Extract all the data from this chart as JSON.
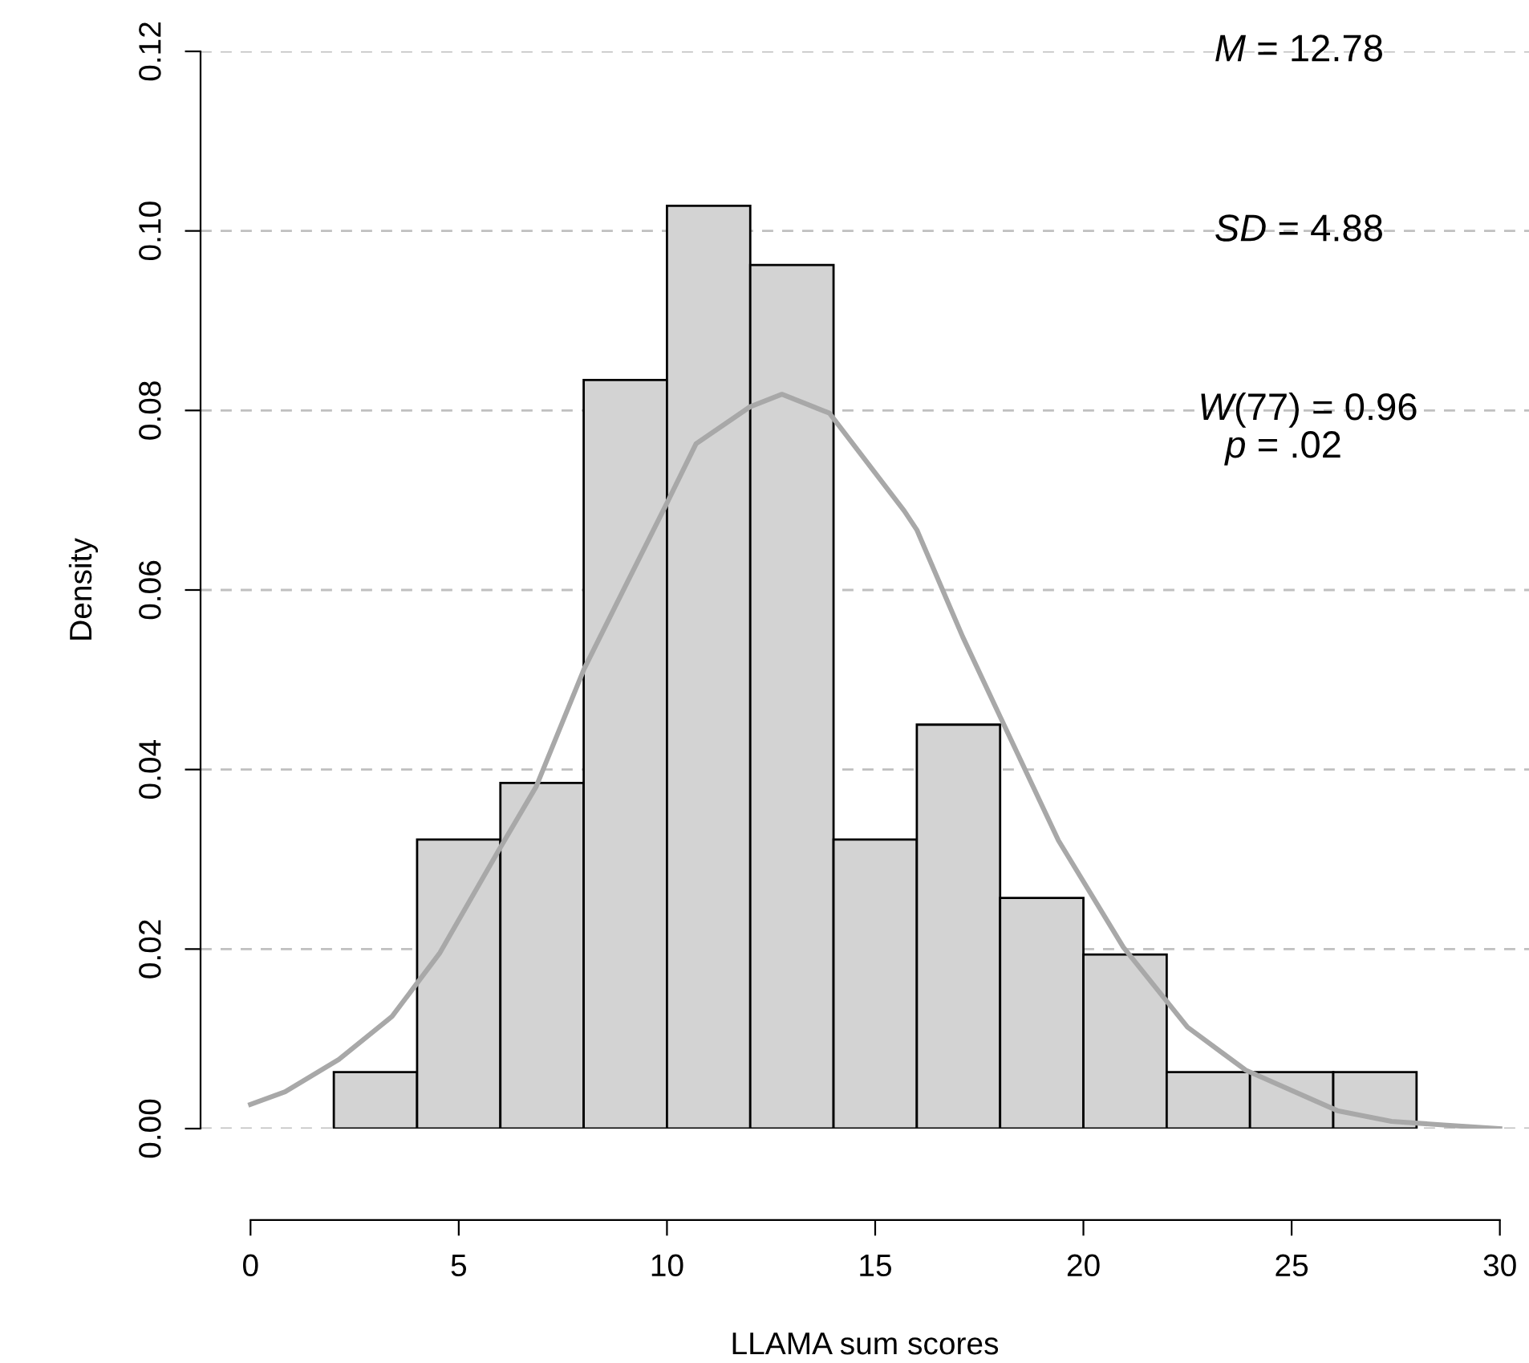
{
  "chart_data": {
    "type": "histogram",
    "xlabel": "LLAMA sum scores",
    "ylabel": "Density",
    "bins": [
      2,
      4,
      6,
      8,
      10,
      12,
      14,
      16,
      18,
      20,
      22,
      24,
      26,
      28
    ],
    "values": [
      0.0063,
      0.0322,
      0.0385,
      0.0834,
      0.1028,
      0.0962,
      0.0322,
      0.045,
      0.0257,
      0.0194,
      0.0063,
      0.0063,
      0.0063
    ],
    "color": "#d3d3d3",
    "series": [
      {
        "type": "line",
        "color": "#a8a8a8",
        "x": [
          0,
          0.83,
          2.12,
          3.4,
          4.55,
          5.96,
          6.86,
          8.01,
          9.04,
          10.0,
          10.7,
          11.99,
          12.76,
          13.9,
          15.7,
          16.0,
          17.1,
          18.0,
          19.4,
          20.96,
          22.5,
          23.9,
          26.1,
          27.4,
          28.65,
          30
        ],
        "values": [
          0.0027,
          0.0041,
          0.0077,
          0.0125,
          0.0196,
          0.031,
          0.0381,
          0.0512,
          0.0608,
          0.0697,
          0.0763,
          0.0804,
          0.0818,
          0.0797,
          0.0688,
          0.0667,
          0.0548,
          0.0459,
          0.0321,
          0.0202,
          0.0113,
          0.0065,
          0.002,
          0.0008,
          0.0004,
          0.0
        ]
      }
    ],
    "annotations": [
      "M = 12.78",
      "SD = 4.88",
      "W(77) = 0.96",
      "p = .02"
    ],
    "xlim": [
      -1.2,
      30.7
    ],
    "ylim": [
      0,
      0.12
    ],
    "xticks": [
      0,
      5,
      10,
      15,
      20,
      25,
      30
    ],
    "yticks": [
      {
        "value": 0,
        "label": "0.00"
      },
      {
        "value": 0.02,
        "label": "0.02"
      },
      {
        "value": 0.04,
        "label": "0.04"
      },
      {
        "value": 0.06,
        "label": "0.06"
      },
      {
        "value": 0.08,
        "label": "0.08"
      },
      {
        "value": 0.1,
        "label": "0.10"
      },
      {
        "value": 0.12,
        "label": "0.12"
      }
    ],
    "grid": "y",
    "line_style": "solid"
  }
}
